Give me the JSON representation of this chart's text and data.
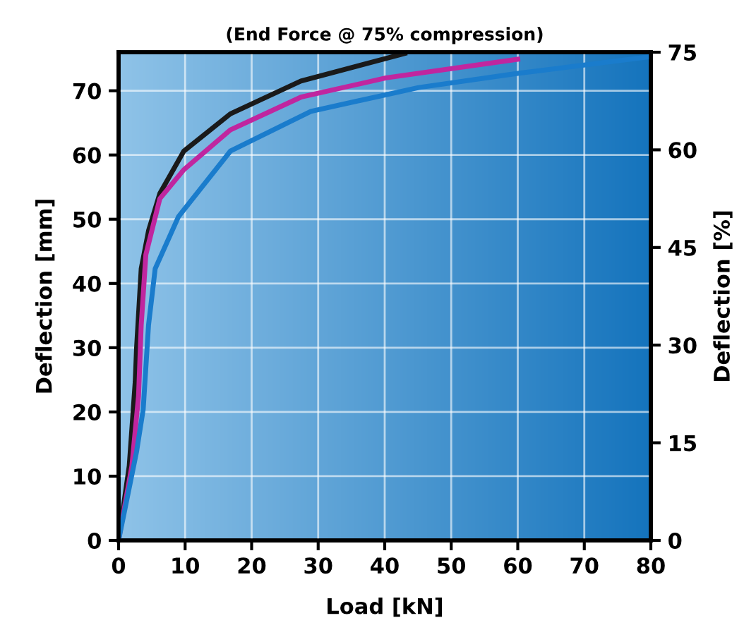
{
  "chart_data": {
    "type": "line",
    "title": "(End Force @ 75% compression)",
    "xlabel": "Load [kN]",
    "ylabel": "Deflection [mm]",
    "y2label": "Deflection [%]",
    "series": [
      {
        "color": "#1a1a1a",
        "x": [
          0,
          1.6,
          2.5,
          2.7,
          3.4,
          4.5,
          6.2,
          9.8,
          16.8,
          27.4,
          43
        ],
        "values": [
          0,
          11.6,
          24.7,
          29.9,
          42.3,
          48.2,
          54,
          60.6,
          66.4,
          71.5,
          75.8
        ]
      },
      {
        "color": "#c0269f",
        "x": [
          0,
          2,
          3,
          3.4,
          4.1,
          6.2,
          9.8,
          16.8,
          27.4,
          40.2,
          60
        ],
        "values": [
          0,
          11.6,
          22.5,
          33.5,
          44.5,
          53.2,
          57.7,
          63.9,
          69,
          72,
          74.9
        ]
      },
      {
        "color": "#1a7ccc",
        "x": [
          0,
          2.7,
          3.7,
          4.5,
          5.5,
          9,
          16.8,
          28.9,
          45.1,
          60,
          80
        ],
        "values": [
          0,
          13.8,
          20.4,
          33.5,
          42.3,
          50.4,
          60.6,
          66.8,
          70.5,
          72.7,
          75.3
        ]
      }
    ],
    "xlim": [
      0,
      80
    ],
    "xticks": [
      0,
      10,
      20,
      30,
      40,
      50,
      60,
      70,
      80
    ],
    "ylim": [
      0,
      76
    ],
    "yticks": [
      0,
      10,
      20,
      30,
      40,
      50,
      60,
      70
    ],
    "y2lim": [
      0,
      75
    ],
    "y2ticks": [
      0,
      15,
      30,
      45,
      60,
      75
    ],
    "grid": true,
    "line_style": "solid",
    "marker": "none"
  }
}
